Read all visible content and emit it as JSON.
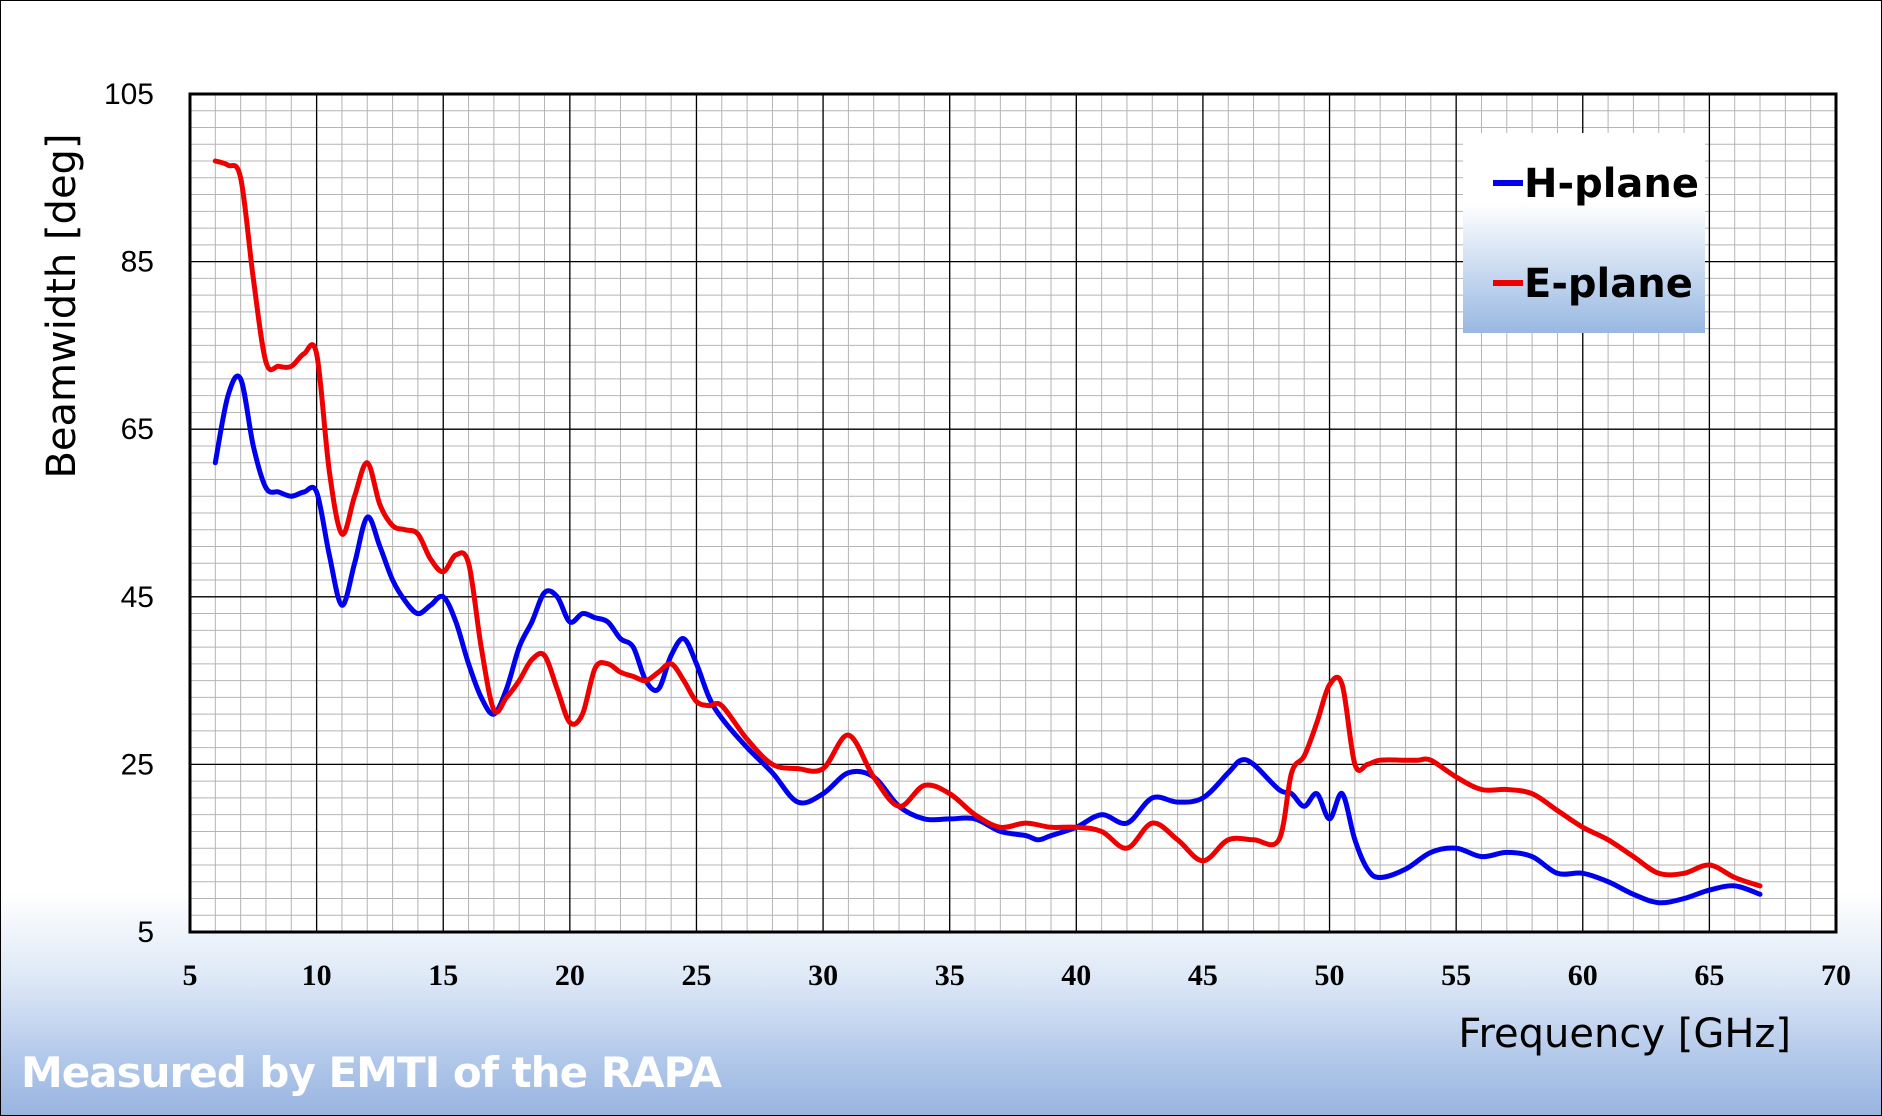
{
  "chart_data": {
    "type": "line",
    "xlabel": "Frequency [GHz]",
    "ylabel": "Beamwidth [deg]",
    "xlim": [
      5,
      70
    ],
    "ylim": [
      5,
      105
    ],
    "x_ticks": [
      5,
      10,
      15,
      20,
      25,
      30,
      35,
      40,
      45,
      50,
      55,
      60,
      65,
      70
    ],
    "y_ticks": [
      5,
      25,
      45,
      65,
      85,
      105
    ],
    "grid": "major and minor",
    "legend_position": "top-right",
    "colors": {
      "H-plane": "#0000ee",
      "E-plane": "#ee0000"
    },
    "series": [
      {
        "name": "H-plane",
        "x": [
          6,
          6.5,
          7,
          7.5,
          8,
          8.5,
          9,
          9.5,
          10,
          10.5,
          11,
          11.5,
          12,
          12.5,
          13,
          13.5,
          14,
          14.5,
          15,
          15.5,
          16,
          16.5,
          17,
          17.5,
          18,
          18.5,
          19,
          19.5,
          20,
          20.5,
          21,
          21.5,
          22,
          22.5,
          23,
          23.5,
          24,
          24.5,
          25,
          25.5,
          26,
          27,
          28,
          29,
          30,
          31,
          32,
          33,
          34,
          35,
          36,
          37,
          38,
          38.5,
          39,
          40,
          41,
          42,
          43,
          44,
          45,
          46,
          46.5,
          47,
          48,
          48.5,
          49,
          49.5,
          50,
          50.5,
          51,
          51.5,
          52,
          53,
          54,
          55,
          56,
          57,
          58,
          59,
          60,
          61,
          62,
          63,
          64,
          65,
          66,
          67
        ],
        "y": [
          61,
          69,
          71,
          63,
          58,
          57.5,
          57,
          57.5,
          57.5,
          50,
          44,
          49,
          54.5,
          51,
          47,
          44.5,
          43,
          44,
          45,
          42,
          37,
          33,
          31,
          34,
          39,
          42,
          45.5,
          45,
          42,
          43,
          42.5,
          42,
          40,
          39,
          35,
          34,
          38,
          40,
          37,
          33,
          30.5,
          27,
          24,
          20.5,
          21.5,
          24,
          23.5,
          20,
          18.5,
          18.5,
          18.5,
          17,
          16.5,
          16,
          16.5,
          17.5,
          19,
          18,
          21,
          20.5,
          21,
          24,
          25.5,
          25,
          22,
          21.5,
          20,
          21.5,
          18.5,
          21.5,
          16,
          12.5,
          11.5,
          12.5,
          14.5,
          15,
          14,
          14.5,
          14,
          12,
          12,
          11,
          9.5,
          8.5,
          9,
          10,
          10.5,
          9.5
        ]
      },
      {
        "name": "E-plane",
        "x": [
          6,
          6.5,
          7,
          7.5,
          8,
          8.5,
          9,
          9.5,
          10,
          10.5,
          11,
          11.5,
          12,
          12.5,
          13,
          13.5,
          14,
          14.5,
          15,
          15.5,
          16,
          16.5,
          17,
          17.5,
          18,
          18.5,
          19,
          19.5,
          20,
          20.5,
          21,
          21.5,
          22,
          22.5,
          23,
          23.5,
          24,
          24.5,
          25,
          25.5,
          26,
          27,
          28,
          29,
          30,
          31,
          32,
          33,
          34,
          35,
          36,
          37,
          38,
          39,
          40,
          41,
          42,
          43,
          44,
          45,
          46,
          47,
          48,
          48.5,
          49,
          49.5,
          50,
          50.5,
          51,
          51.5,
          52,
          53,
          53.5,
          54,
          55,
          56,
          57,
          58,
          59,
          60,
          61,
          62,
          63,
          64,
          65,
          66,
          67
        ],
        "y": [
          97,
          96.5,
          95,
          83,
          73,
          72.5,
          72.5,
          74,
          74,
          60,
          52.5,
          57,
          61,
          56,
          53.5,
          53,
          52.5,
          49.5,
          48,
          50,
          49,
          39,
          31.5,
          33,
          35,
          37.5,
          38,
          34,
          30,
          31,
          36.5,
          37,
          36,
          35.5,
          35,
          36,
          37,
          35,
          32.5,
          32,
          32,
          28,
          25,
          24.5,
          24.5,
          28.5,
          23.5,
          20,
          22.5,
          21.5,
          19,
          17.5,
          18,
          17.5,
          17.5,
          17,
          15,
          18,
          16,
          13.5,
          16,
          16,
          16,
          24,
          26,
          30,
          34.5,
          34.5,
          25,
          25,
          25.5,
          25.5,
          25.5,
          25.5,
          23.5,
          22,
          22,
          21.5,
          19.5,
          17.5,
          16,
          14,
          12,
          12,
          13,
          11.5,
          10.5
        ]
      }
    ]
  },
  "annotation": "Measured by EMTI of the RAPA"
}
